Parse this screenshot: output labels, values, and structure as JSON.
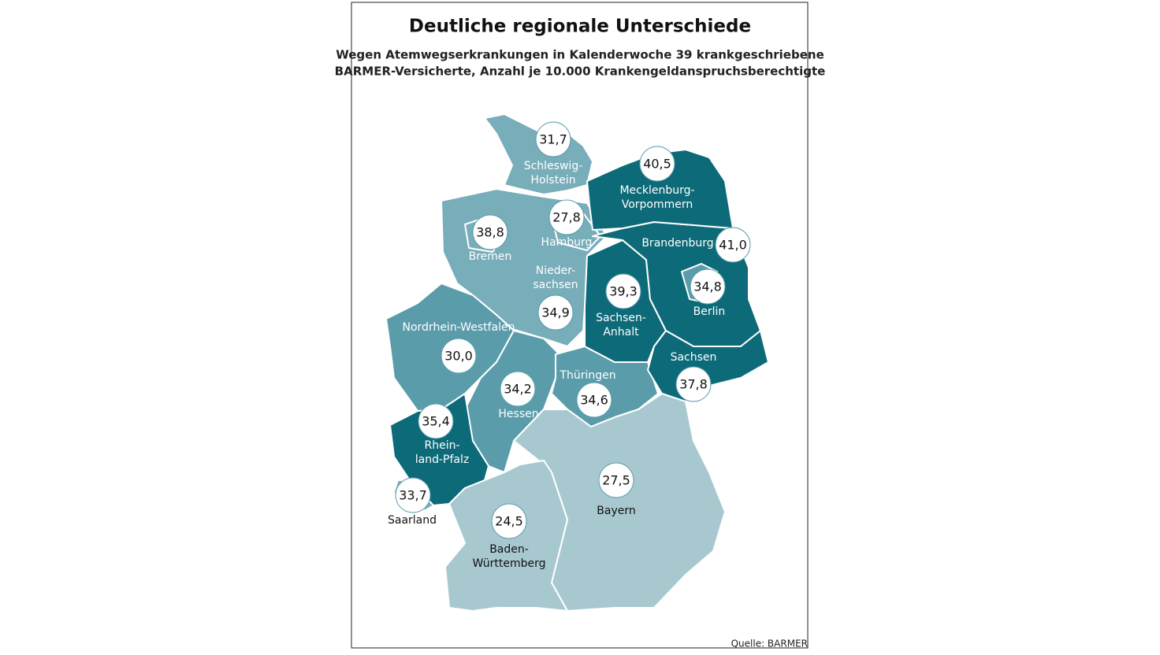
{
  "header": {
    "title": "Deutliche regionale Unterschiede",
    "subtitle": [
      "Wegen Atemwegserkrankungen in Kalenderwoche 39 krankgeschriebene",
      "BARMER-Versicherte, Anzahl je 10.000 Krankengeldanspruchsberechtigte"
    ]
  },
  "regions": [
    {
      "name": [
        "Schleswig-",
        "Holstein"
      ],
      "value": "31,7",
      "color": "#78adba"
    },
    {
      "name": [
        "Hamburg"
      ],
      "value": "27,8",
      "color": "#78adba"
    },
    {
      "name": [
        "Bremen"
      ],
      "value": "38,8",
      "color": "#78adba"
    },
    {
      "name": [
        "Nieder-",
        "sachsen"
      ],
      "value": "34,9",
      "color": "#78adba"
    },
    {
      "name": [
        "Mecklenburg-",
        "Vorpommern"
      ],
      "value": "40,5",
      "color": "#0d6a78"
    },
    {
      "name": [
        "Brandenburg"
      ],
      "value": "41,0",
      "color": "#0d6a78"
    },
    {
      "name": [
        "Berlin"
      ],
      "value": "34,8",
      "color": "#5b9cab"
    },
    {
      "name": [
        "Sachsen-",
        "Anhalt"
      ],
      "value": "39,3",
      "color": "#0d6a78"
    },
    {
      "name": [
        "Sachsen"
      ],
      "value": "37,8",
      "color": "#0d6a78"
    },
    {
      "name": [
        "Thüringen"
      ],
      "value": "34,6",
      "color": "#5b9cab"
    },
    {
      "name": [
        "Nordrhein-Westfalen"
      ],
      "value": "30,0",
      "color": "#5b9cab"
    },
    {
      "name": [
        "Hessen"
      ],
      "value": "34,2",
      "color": "#5b9cab"
    },
    {
      "name": [
        "Rhein-",
        "land-Pfalz"
      ],
      "value": "35,4",
      "color": "#0d6a78"
    },
    {
      "name": [
        "Saarland"
      ],
      "value": "33,7",
      "color": "#78adba"
    },
    {
      "name": [
        "Bayern"
      ],
      "value": "27,5",
      "color": "#a8c8d0"
    },
    {
      "name": [
        "Baden-",
        "Württemberg"
      ],
      "value": "24,5",
      "color": "#a8c8d0"
    }
  ],
  "source": "Quelle: BARMER"
}
